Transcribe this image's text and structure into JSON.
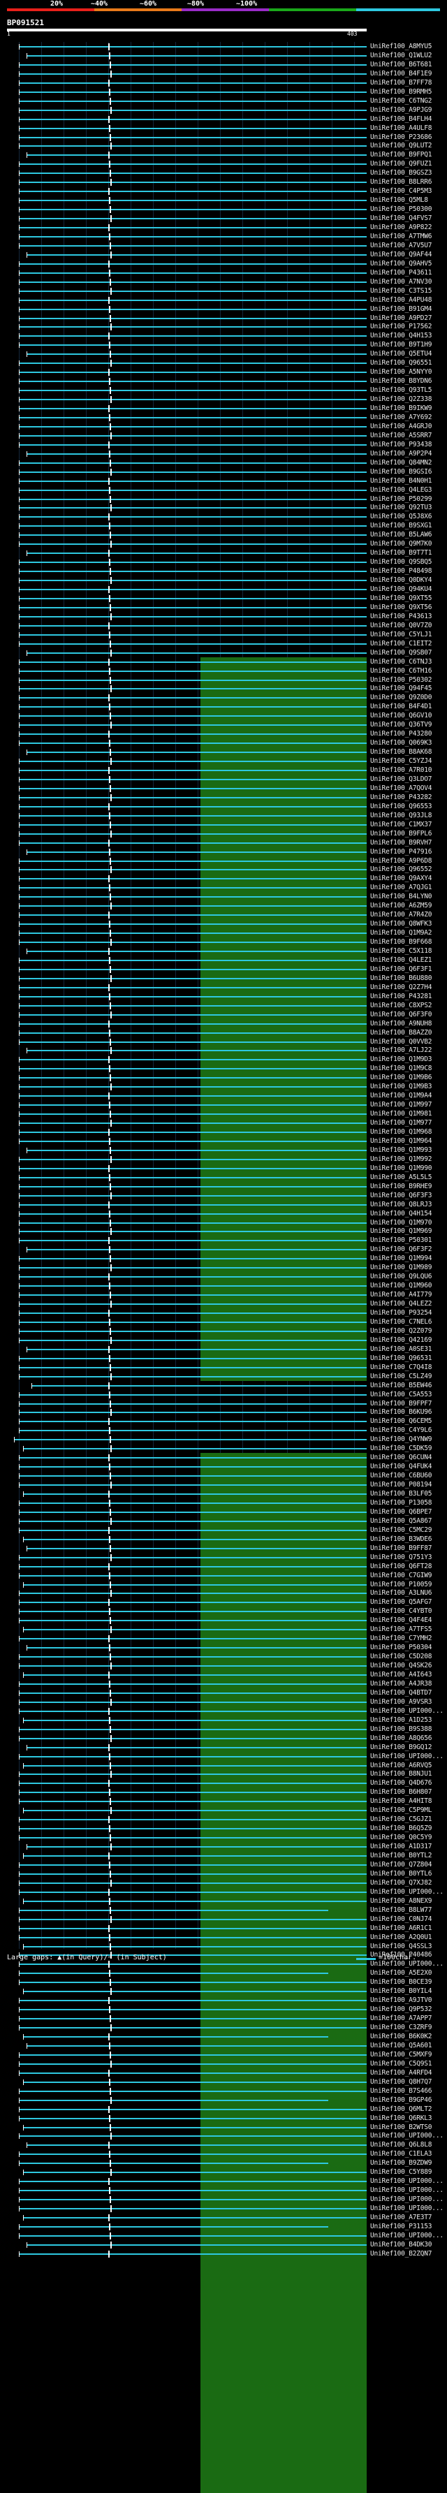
{
  "legend": {
    "labels": [
      "20%",
      "~40%",
      "~60%",
      "~80%",
      "~100%"
    ],
    "colors": [
      "#e8201a",
      "#e87a1a",
      "#9a2cc8",
      "#1aa81a",
      "#2ec8e0"
    ]
  },
  "query": {
    "id": "BP091521",
    "start_label": "1",
    "end_label": "403"
  },
  "footer": {
    "gaps_text": "Large gaps: ▲(in Query)/~ (in Subject)",
    "scale_text": "=100char."
  },
  "colors": {
    "background": "#000000",
    "hit_line": "#2ec8e0",
    "green_block": "#1a6b13",
    "magenta_block": "#c82ee0"
  },
  "hits": [
    {
      "acc": "UniRef100_A8MYU5"
    },
    {
      "acc": "UniRef100_Q1WLU2"
    },
    {
      "acc": "UniRef100_B6T681"
    },
    {
      "acc": "UniRef100_B4F1E9"
    },
    {
      "acc": "UniRef100_B7FF78"
    },
    {
      "acc": "UniRef100_B9RMH5"
    },
    {
      "acc": "UniRef100_C6TNG2"
    },
    {
      "acc": "UniRef100_A9PJG9"
    },
    {
      "acc": "UniRef100_B4FLH4"
    },
    {
      "acc": "UniRef100_A4ULF8"
    },
    {
      "acc": "UniRef100_P23686"
    },
    {
      "acc": "UniRef100_Q9LUT2"
    },
    {
      "acc": "UniRef100_B9FPQ1"
    },
    {
      "acc": "UniRef100_Q9FUZ1"
    },
    {
      "acc": "UniRef100_B9GSZ3"
    },
    {
      "acc": "UniRef100_B8LRR6"
    },
    {
      "acc": "UniRef100_C4P5M3"
    },
    {
      "acc": "UniRef100_Q5ML8"
    },
    {
      "acc": "UniRef100_P50300"
    },
    {
      "acc": "UniRef100_Q4FVS7"
    },
    {
      "acc": "UniRef100_A9P822"
    },
    {
      "acc": "UniRef100_A7TMW6"
    },
    {
      "acc": "UniRef100_A7V5U7"
    },
    {
      "acc": "UniRef100_Q9AF44"
    },
    {
      "acc": "UniRef100_Q9AHV5"
    },
    {
      "acc": "UniRef100_P43611"
    },
    {
      "acc": "UniRef100_A7NV30"
    },
    {
      "acc": "UniRef100_C3TS15"
    },
    {
      "acc": "UniRef100_A4PU48"
    },
    {
      "acc": "UniRef100_B91GM4"
    },
    {
      "acc": "UniRef100_A9PD27"
    },
    {
      "acc": "UniRef100_P17562"
    },
    {
      "acc": "UniRef100_Q4H153"
    },
    {
      "acc": "UniRef100_B9T1H9"
    },
    {
      "acc": "UniRef100_Q5ETU4"
    },
    {
      "acc": "UniRef100_Q96551"
    },
    {
      "acc": "UniRef100_A5NYY0"
    },
    {
      "acc": "UniRef100_B8YDN6"
    },
    {
      "acc": "UniRef100_Q93TL5"
    },
    {
      "acc": "UniRef100_Q2Z338"
    },
    {
      "acc": "UniRef100_B9IKW9"
    },
    {
      "acc": "UniRef100_A7Y692"
    },
    {
      "acc": "UniRef100_A4GRJ0"
    },
    {
      "acc": "UniRef100_A5SRR7"
    },
    {
      "acc": "UniRef100_P93438"
    },
    {
      "acc": "UniRef100_A9P2P4"
    },
    {
      "acc": "UniRef100_Q84MN2"
    },
    {
      "acc": "UniRef100_B9GSI6"
    },
    {
      "acc": "UniRef100_B4N0H1"
    },
    {
      "acc": "UniRef100_Q4LEG3"
    },
    {
      "acc": "UniRef100_P50299"
    },
    {
      "acc": "UniRef100_Q92TU3"
    },
    {
      "acc": "UniRef100_Q5J8X6"
    },
    {
      "acc": "UniRef100_B9SXG1"
    },
    {
      "acc": "UniRef100_B5LAW6"
    },
    {
      "acc": "UniRef100_Q9M7K0"
    },
    {
      "acc": "UniRef100_B9T7T1"
    },
    {
      "acc": "UniRef100_Q9SBQ5"
    },
    {
      "acc": "UniRef100_P48498"
    },
    {
      "acc": "UniRef100_Q0DKY4"
    },
    {
      "acc": "UniRef100_Q94KU4"
    },
    {
      "acc": "UniRef100_Q9XT55"
    },
    {
      "acc": "UniRef100_Q9XT56"
    },
    {
      "acc": "UniRef100_P43613"
    },
    {
      "acc": "UniRef100_Q0V7Z0"
    },
    {
      "acc": "UniRef100_C5YLJ1"
    },
    {
      "acc": "UniRef100_C1EIT2"
    },
    {
      "acc": "UniRef100_Q9SB07"
    },
    {
      "acc": "UniRef100_C6TNJ3"
    },
    {
      "acc": "UniRef100_C6TH16"
    },
    {
      "acc": "UniRef100_P50302"
    },
    {
      "acc": "UniRef100_Q94F45"
    },
    {
      "acc": "UniRef100_Q9Z0D0"
    },
    {
      "acc": "UniRef100_B4F4D1"
    },
    {
      "acc": "UniRef100_Q6GV10"
    },
    {
      "acc": "UniRef100_Q36TV9"
    },
    {
      "acc": "UniRef100_P43280"
    },
    {
      "acc": "UniRef100_Q069K3"
    },
    {
      "acc": "UniRef100_B8AK68"
    },
    {
      "acc": "UniRef100_C5YZJ4"
    },
    {
      "acc": "UniRef100_A7R010"
    },
    {
      "acc": "UniRef100_Q3LDO7"
    },
    {
      "acc": "UniRef100_A7QOV4"
    },
    {
      "acc": "UniRef100_P43282"
    },
    {
      "acc": "UniRef100_Q96553"
    },
    {
      "acc": "UniRef100_Q93JL8"
    },
    {
      "acc": "UniRef100_C1MX37"
    },
    {
      "acc": "UniRef100_B9FPL6"
    },
    {
      "acc": "UniRef100_B9RVH7"
    },
    {
      "acc": "UniRef100_P47916"
    },
    {
      "acc": "UniRef100_A9P6D8"
    },
    {
      "acc": "UniRef100_Q96552"
    },
    {
      "acc": "UniRef100_Q9AXY4"
    },
    {
      "acc": "UniRef100_A7QJG1"
    },
    {
      "acc": "UniRef100_B4LYN0"
    },
    {
      "acc": "UniRef100_A6ZM59"
    },
    {
      "acc": "UniRef100_A7R4Z0"
    },
    {
      "acc": "UniRef100_Q8WFK3"
    },
    {
      "acc": "UniRef100_Q1M9A2"
    },
    {
      "acc": "UniRef100_B9F668"
    },
    {
      "acc": "UniRef100_C5X118"
    },
    {
      "acc": "UniRef100_Q4LEZ1"
    },
    {
      "acc": "UniRef100_Q6F3F1"
    },
    {
      "acc": "UniRef100_B6U880"
    },
    {
      "acc": "UniRef100_Q2Z7H4"
    },
    {
      "acc": "UniRef100_P43281"
    },
    {
      "acc": "UniRef100_C8XPS2"
    },
    {
      "acc": "UniRef100_Q6F3F0"
    },
    {
      "acc": "UniRef100_A9NUH8"
    },
    {
      "acc": "UniRef100_B8AZZ0"
    },
    {
      "acc": "UniRef100_Q0VVB2"
    },
    {
      "acc": "UniRef100_A7LJ22"
    },
    {
      "acc": "UniRef100_Q1M9D3"
    },
    {
      "acc": "UniRef100_Q1M9C8"
    },
    {
      "acc": "UniRef100_Q1M9B6"
    },
    {
      "acc": "UniRef100_Q1M9B3"
    },
    {
      "acc": "UniRef100_Q1M9A4"
    },
    {
      "acc": "UniRef100_Q1M997"
    },
    {
      "acc": "UniRef100_Q1M981"
    },
    {
      "acc": "UniRef100_Q1M977"
    },
    {
      "acc": "UniRef100_Q1M968"
    },
    {
      "acc": "UniRef100_Q1M964"
    },
    {
      "acc": "UniRef100_Q1M993"
    },
    {
      "acc": "UniRef100_Q1M992"
    },
    {
      "acc": "UniRef100_Q1M990"
    },
    {
      "acc": "UniRef100_A5L5L5"
    },
    {
      "acc": "UniRef100_B9RHE9"
    },
    {
      "acc": "UniRef100_Q6F3F3"
    },
    {
      "acc": "UniRef100_Q8LRJ3"
    },
    {
      "acc": "UniRef100_Q4H154"
    },
    {
      "acc": "UniRef100_Q1M970"
    },
    {
      "acc": "UniRef100_Q1M969"
    },
    {
      "acc": "UniRef100_P50301"
    },
    {
      "acc": "UniRef100_Q6F3F2"
    },
    {
      "acc": "UniRef100_Q1M994"
    },
    {
      "acc": "UniRef100_Q1M989"
    },
    {
      "acc": "UniRef100_Q9LQU6"
    },
    {
      "acc": "UniRef100_Q1M960"
    },
    {
      "acc": "UniRef100_A4I779"
    },
    {
      "acc": "UniRef100_Q4LEZ2"
    },
    {
      "acc": "UniRef100_P93254"
    },
    {
      "acc": "UniRef100_C7NEL6"
    },
    {
      "acc": "UniRef100_Q2Z079"
    },
    {
      "acc": "UniRef100_Q42169"
    },
    {
      "acc": "UniRef100_A0SE31"
    },
    {
      "acc": "UniRef100_Q96531"
    },
    {
      "acc": "UniRef100_C7Q4I8"
    },
    {
      "acc": "UniRef100_C5LZ49"
    },
    {
      "acc": "UniRef100_B5EW46"
    },
    {
      "acc": "UniRef100_C5A553"
    },
    {
      "acc": "UniRef100_B9FPF7"
    },
    {
      "acc": "UniRef100_B6KU96"
    },
    {
      "acc": "UniRef100_Q6CEM5"
    },
    {
      "acc": "UniRef100_C4Y9L6"
    },
    {
      "acc": "UniRef100_Q4YNW9"
    },
    {
      "acc": "UniRef100_C5DK59"
    },
    {
      "acc": "UniRef100_Q6CUN4"
    },
    {
      "acc": "UniRef100_Q4FUK4"
    },
    {
      "acc": "UniRef100_C6BU60"
    },
    {
      "acc": "UniRef100_P08194"
    },
    {
      "acc": "UniRef100_B3LF05"
    },
    {
      "acc": "UniRef100_P13058"
    },
    {
      "acc": "UniRef100_Q6BPE7"
    },
    {
      "acc": "UniRef100_Q5A867"
    },
    {
      "acc": "UniRef100_C5MC29"
    },
    {
      "acc": "UniRef100_B3WDE6"
    },
    {
      "acc": "UniRef100_B9FF87"
    },
    {
      "acc": "UniRef100_Q751Y3"
    },
    {
      "acc": "UniRef100_Q6FT28"
    },
    {
      "acc": "UniRef100_C7GIW9"
    },
    {
      "acc": "UniRef100_P10059"
    },
    {
      "acc": "UniRef100_A3LNU6"
    },
    {
      "acc": "UniRef100_Q5AFG7"
    },
    {
      "acc": "UniRef100_C4YBT0"
    },
    {
      "acc": "UniRef100_Q4F4E4"
    },
    {
      "acc": "UniRef100_A7TFS5"
    },
    {
      "acc": "UniRef100_C7YMH2"
    },
    {
      "acc": "UniRef100_P50304"
    },
    {
      "acc": "UniRef100_C5D208"
    },
    {
      "acc": "UniRef100_Q4SK26"
    },
    {
      "acc": "UniRef100_A4I643"
    },
    {
      "acc": "UniRef100_A4JR38"
    },
    {
      "acc": "UniRef100_Q4BTD7"
    },
    {
      "acc": "UniRef100_A9VSR3"
    },
    {
      "acc": "UniRef100_UPI000..."
    },
    {
      "acc": "UniRef100_A1D253"
    },
    {
      "acc": "UniRef100_B9S388"
    },
    {
      "acc": "UniRef100_A8Q656"
    },
    {
      "acc": "UniRef100_B9GQ12"
    },
    {
      "acc": "UniRef100_UPI000..."
    },
    {
      "acc": "UniRef100_A6RVQ5"
    },
    {
      "acc": "UniRef100_B8NJU1"
    },
    {
      "acc": "UniRef100_Q4D676"
    },
    {
      "acc": "UniRef100_B6H807"
    },
    {
      "acc": "UniRef100_A4HIT8"
    },
    {
      "acc": "UniRef100_C5P9ML"
    },
    {
      "acc": "UniRef100_C5GJZ1"
    },
    {
      "acc": "UniRef100_B6Q5Z9"
    },
    {
      "acc": "UniRef100_Q0C5Y9"
    },
    {
      "acc": "UniRef100_A1D317"
    },
    {
      "acc": "UniRef100_B0YTL2"
    },
    {
      "acc": "UniRef100_Q7Z804"
    },
    {
      "acc": "UniRef100_B0YTL6"
    },
    {
      "acc": "UniRef100_Q7XJ82"
    },
    {
      "acc": "UniRef100_UPI000..."
    },
    {
      "acc": "UniRef100_A8NEX9"
    },
    {
      "acc": "UniRef100_B8LW77"
    },
    {
      "acc": "UniRef100_C0NJ74"
    },
    {
      "acc": "UniRef100_A6R1C1"
    },
    {
      "acc": "UniRef100_A2Q0U1"
    },
    {
      "acc": "UniRef100_Q4SSL3"
    },
    {
      "acc": "UniRef100_P40486"
    },
    {
      "acc": "UniRef100_UPI000..."
    },
    {
      "acc": "UniRef100_A5E2X0"
    },
    {
      "acc": "UniRef100_B0CE39"
    },
    {
      "acc": "UniRef100_B0YIL4"
    },
    {
      "acc": "UniRef100_A9JTV0"
    },
    {
      "acc": "UniRef100_Q9P532"
    },
    {
      "acc": "UniRef100_A7APP7"
    },
    {
      "acc": "UniRef100_C3ZRF9"
    },
    {
      "acc": "UniRef100_B6K0K2"
    },
    {
      "acc": "UniRef100_Q5A601"
    },
    {
      "acc": "UniRef100_C5MXF9"
    },
    {
      "acc": "UniRef100_C5Q9S1"
    },
    {
      "acc": "UniRef100_A4RFD4"
    },
    {
      "acc": "UniRef100_Q8H7Q7"
    },
    {
      "acc": "UniRef100_B7S466"
    },
    {
      "acc": "UniRef100_B9GP46"
    },
    {
      "acc": "UniRef100_Q6MLT2"
    },
    {
      "acc": "UniRef100_Q6RKL3"
    },
    {
      "acc": "UniRef100_B2WTS0"
    },
    {
      "acc": "UniRef100_UPI000..."
    },
    {
      "acc": "UniRef100_Q6L8L8"
    },
    {
      "acc": "UniRef100_C1ELA3"
    },
    {
      "acc": "UniRef100_B9ZDW9"
    },
    {
      "acc": "UniRef100_C5Y889"
    },
    {
      "acc": "UniRef100_UPI000..."
    },
    {
      "acc": "UniRef100_UPI000..."
    },
    {
      "acc": "UniRef100_UPI000..."
    },
    {
      "acc": "UniRef100_UPI000..."
    },
    {
      "acc": "UniRef100_A7E3T7"
    },
    {
      "acc": "UniRef100_P31153"
    },
    {
      "acc": "UniRef100_UPI000..."
    },
    {
      "acc": "UniRef100_B4DK30"
    },
    {
      "acc": "UniRef100_B2ZQN7"
    }
  ]
}
